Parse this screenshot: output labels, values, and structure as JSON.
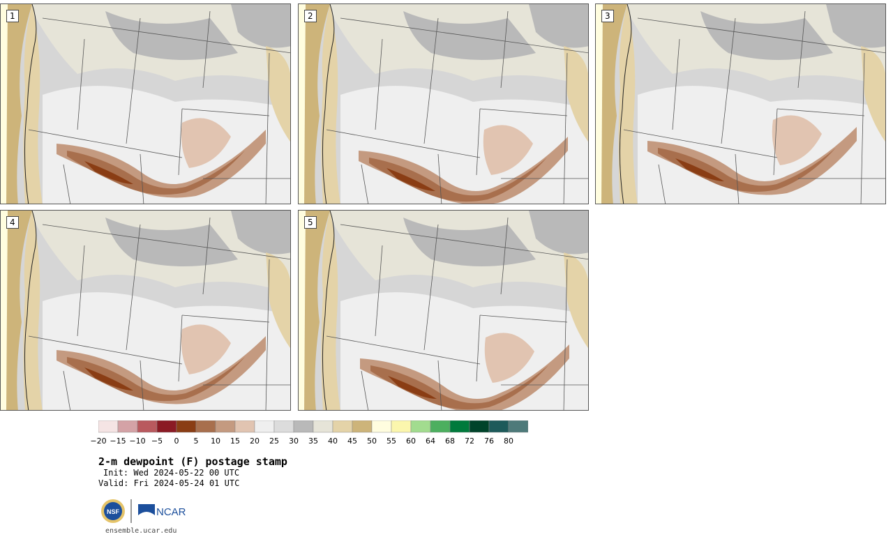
{
  "panels": [
    {
      "label": "1"
    },
    {
      "label": "2"
    },
    {
      "label": "3"
    },
    {
      "label": "4"
    },
    {
      "label": "5"
    }
  ],
  "colorbar": {
    "colors": [
      "#f5e4e4",
      "#d4a2a6",
      "#b9595e",
      "#8b1a24",
      "#8a3d14",
      "#a86f4d",
      "#c49a80",
      "#e1c4b1",
      "#efefef",
      "#dcdcdc",
      "#b9b9b9",
      "#e6e4d8",
      "#e4d3a8",
      "#cdb47a",
      "#fffddf",
      "#fbf6ad",
      "#a2dc8f",
      "#4caf5f",
      "#007a3c",
      "#00432a",
      "#1d5a5a",
      "#4e7a7a"
    ],
    "ticks": [
      "−20",
      "−15",
      "−10",
      "−5",
      "0",
      "5",
      "10",
      "15",
      "20",
      "25",
      "30",
      "35",
      "40",
      "45",
      "50",
      "55",
      "60",
      "64",
      "68",
      "72",
      "76",
      "80"
    ]
  },
  "title": "2-m dewpoint (F) postage stamp",
  "init": "Init: Wed 2024-05-22 00 UTC",
  "valid": "Valid: Fri 2024-05-24 01 UTC",
  "logos": {
    "nsf": "NSF",
    "ncar": "NCAR"
  },
  "site": "ensemble.ucar.edu"
}
